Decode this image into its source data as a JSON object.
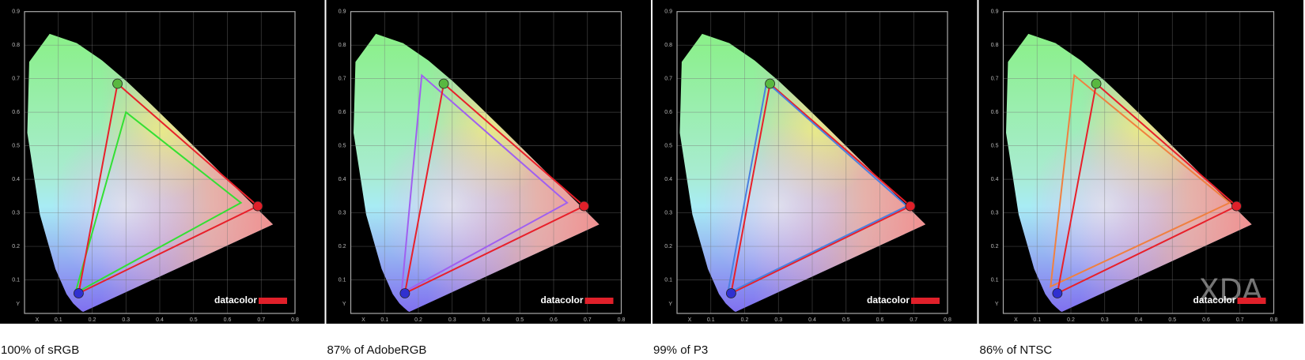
{
  "chart_data": [
    {
      "type": "gamut",
      "title": "100% of sRGB",
      "xlabel": "X",
      "ylabel": "Y",
      "xlim": [
        0,
        0.8
      ],
      "ylim": [
        0,
        0.9
      ],
      "xticks": [
        0.1,
        0.2,
        0.3,
        0.4,
        0.5,
        0.6,
        0.7,
        0.8
      ],
      "yticks": [
        0.1,
        0.2,
        0.3,
        0.4,
        0.5,
        0.6,
        0.7,
        0.8,
        0.9
      ],
      "grid": true,
      "logo": "datacolor",
      "series": [
        {
          "color": "#33e033",
          "x": [
            0.64,
            0.3,
            0.15
          ],
          "y": [
            0.33,
            0.6,
            0.06
          ]
        },
        {
          "color": "#e8202a",
          "x": [
            0.69,
            0.275,
            0.16
          ],
          "y": [
            0.32,
            0.685,
            0.06
          ],
          "marker_colors": [
            "#e0202a",
            "#58b840",
            "#3030d0"
          ]
        }
      ]
    },
    {
      "type": "gamut",
      "title": "87% of AdobeRGB",
      "xlabel": "X",
      "ylabel": "Y",
      "xlim": [
        0,
        0.8
      ],
      "ylim": [
        0,
        0.9
      ],
      "xticks": [
        0.1,
        0.2,
        0.3,
        0.4,
        0.5,
        0.6,
        0.7,
        0.8
      ],
      "yticks": [
        0.1,
        0.2,
        0.3,
        0.4,
        0.5,
        0.6,
        0.7,
        0.8,
        0.9
      ],
      "grid": true,
      "logo": "datacolor",
      "series": [
        {
          "color": "#a060f0",
          "x": [
            0.64,
            0.21,
            0.15
          ],
          "y": [
            0.33,
            0.71,
            0.06
          ]
        },
        {
          "color": "#e8202a",
          "x": [
            0.69,
            0.275,
            0.16
          ],
          "y": [
            0.32,
            0.685,
            0.06
          ],
          "marker_colors": [
            "#e0202a",
            "#58b840",
            "#3030d0"
          ]
        }
      ]
    },
    {
      "type": "gamut",
      "title": "99% of P3",
      "xlabel": "X",
      "ylabel": "Y",
      "xlim": [
        0,
        0.8
      ],
      "ylim": [
        0,
        0.9
      ],
      "xticks": [
        0.1,
        0.2,
        0.3,
        0.4,
        0.5,
        0.6,
        0.7,
        0.8
      ],
      "yticks": [
        0.1,
        0.2,
        0.3,
        0.4,
        0.5,
        0.6,
        0.7,
        0.8,
        0.9
      ],
      "grid": true,
      "logo": "datacolor",
      "series": [
        {
          "color": "#e8202a",
          "x": [
            0.69,
            0.275,
            0.16
          ],
          "y": [
            0.32,
            0.685,
            0.06
          ],
          "marker_colors": [
            "#e0202a",
            "#58b840",
            "#3030d0"
          ]
        },
        {
          "color": "#4a80e0",
          "x": [
            0.68,
            0.265,
            0.15
          ],
          "y": [
            0.32,
            0.69,
            0.06
          ]
        }
      ]
    },
    {
      "type": "gamut",
      "title": "86% of NTSC",
      "xlabel": "X",
      "ylabel": "Y",
      "xlim": [
        0,
        0.8
      ],
      "ylim": [
        0,
        0.9
      ],
      "xticks": [
        0.1,
        0.2,
        0.3,
        0.4,
        0.5,
        0.6,
        0.7,
        0.8
      ],
      "yticks": [
        0.1,
        0.2,
        0.3,
        0.4,
        0.5,
        0.6,
        0.7,
        0.8,
        0.9
      ],
      "grid": true,
      "logo": "datacolor",
      "watermark": "XDA",
      "series": [
        {
          "color": "#f08040",
          "x": [
            0.67,
            0.21,
            0.14
          ],
          "y": [
            0.33,
            0.71,
            0.08
          ]
        },
        {
          "color": "#e8202a",
          "x": [
            0.69,
            0.275,
            0.16
          ],
          "y": [
            0.32,
            0.685,
            0.06
          ],
          "marker_colors": [
            "#e0202a",
            "#58b840",
            "#3030d0"
          ]
        }
      ]
    }
  ]
}
